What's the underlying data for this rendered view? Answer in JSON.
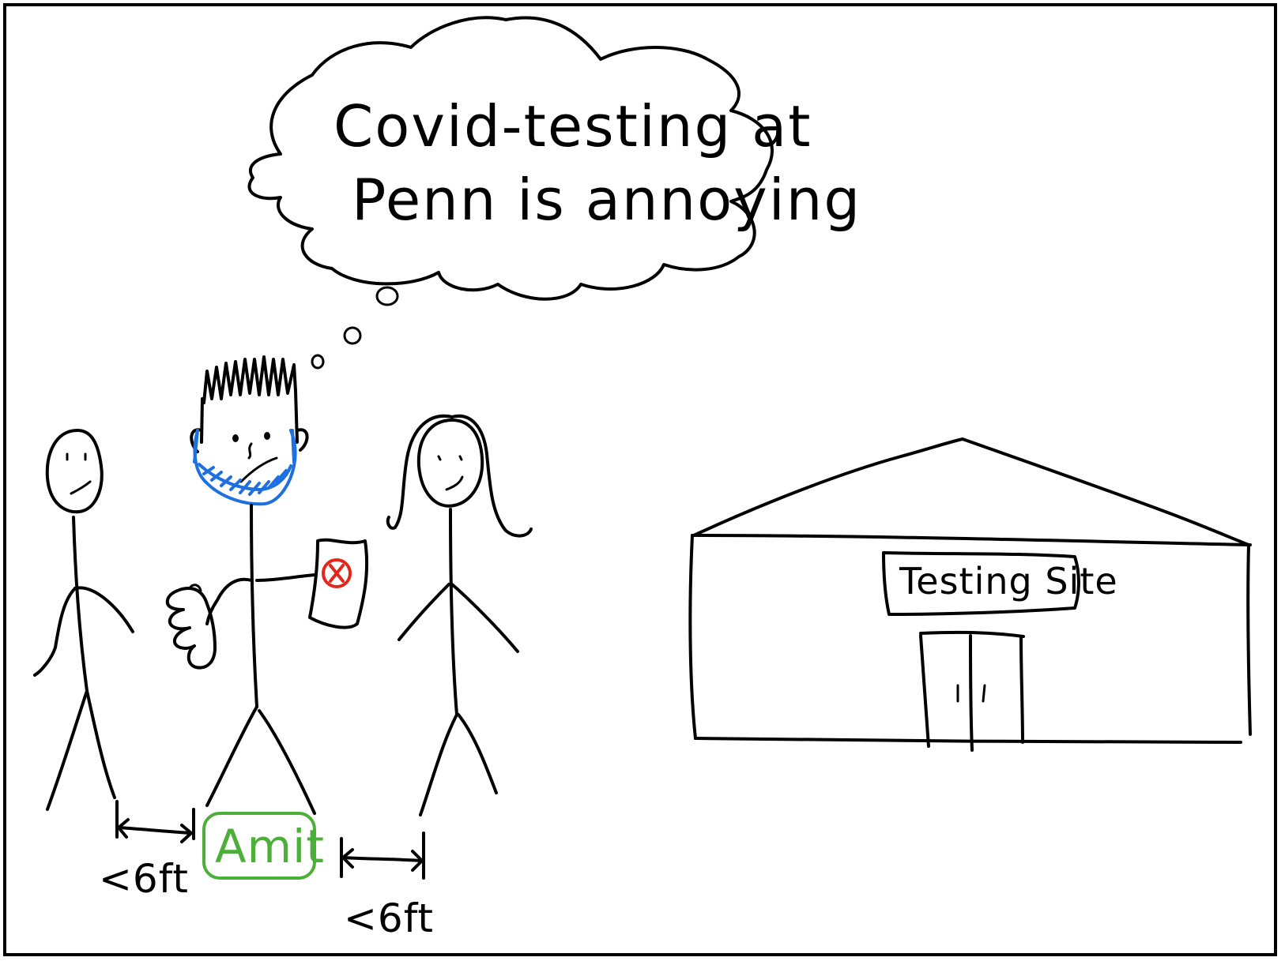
{
  "thought": {
    "line1": "Covid-testing at",
    "line2": "Penn is annoying"
  },
  "building": {
    "sign": "Testing Site"
  },
  "main_person": {
    "name": "Amit"
  },
  "distances": {
    "left": "<6ft",
    "right": "<6ft"
  },
  "colors": {
    "ink": "#000000",
    "mask": "#1e6fe0",
    "name_tag": "#4caf3a",
    "reject_mark": "#e3261c",
    "background": "#ffffff"
  }
}
